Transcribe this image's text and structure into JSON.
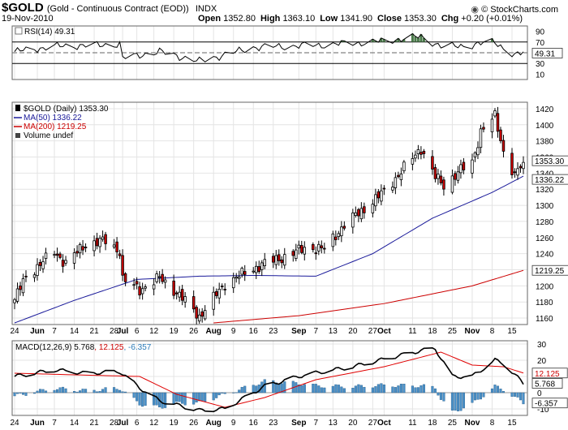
{
  "header": {
    "symbol": "$GOLD",
    "name": "(Gold - Continuous Contract (EOD))",
    "exchange": "INDX",
    "date": "19-Nov-2010",
    "copyright": "© StockCharts.com",
    "ohlc": [
      {
        "label": "Open",
        "value": "1352.80"
      },
      {
        "label": "High",
        "value": "1363.10"
      },
      {
        "label": "Low",
        "value": "1341.90"
      },
      {
        "label": "Close",
        "value": "1353.30"
      },
      {
        "label": "Chg",
        "value": "+0.20 (+0.01%)"
      }
    ]
  },
  "rsi": {
    "legend": "RSI(14) 49.31",
    "value_label": "49.31",
    "ticks": [
      "90",
      "70",
      "50",
      "30",
      "10"
    ]
  },
  "price": {
    "legend": [
      {
        "text": "$GOLD (Daily) 1353.30",
        "color": "#000000"
      },
      {
        "text": "MA(50) 1336.22",
        "color": "#1a1a9a"
      },
      {
        "text": "MA(200) 1219.25",
        "color": "#cc0000"
      },
      {
        "text": "Volume undef",
        "color": "#000000"
      }
    ],
    "ticks": [
      "1420",
      "1400",
      "1380",
      "1360",
      "1340",
      "1320",
      "1300",
      "1280",
      "1260",
      "1240",
      "1220",
      "1200",
      "1180",
      "1160"
    ],
    "flags": {
      "close": "1353.30",
      "ma50": "1336.22",
      "ma200": "1219.25"
    }
  },
  "macd": {
    "legend_prefix": "MACD(12,26,9)",
    "macd_value": "5.768",
    "signal_value": "12.125",
    "hist_value": "-6.357",
    "ticks": [
      "30",
      "20",
      "10",
      "0",
      "-10"
    ],
    "flags": {
      "signal": "12.125",
      "macd": "5.768",
      "hist": "-6.357"
    }
  },
  "x_axis": {
    "labels": [
      {
        "text": "24",
        "bold": false
      },
      {
        "text": "Jun",
        "bold": true
      },
      {
        "text": "7",
        "bold": false
      },
      {
        "text": "14",
        "bold": false
      },
      {
        "text": "21",
        "bold": false
      },
      {
        "text": "28",
        "bold": false
      },
      {
        "text": "Jul",
        "bold": true
      },
      {
        "text": "6",
        "bold": false
      },
      {
        "text": "12",
        "bold": false
      },
      {
        "text": "19",
        "bold": false
      },
      {
        "text": "26",
        "bold": false
      },
      {
        "text": "Aug",
        "bold": true
      },
      {
        "text": "9",
        "bold": false
      },
      {
        "text": "16",
        "bold": false
      },
      {
        "text": "23",
        "bold": false
      },
      {
        "text": "Sep",
        "bold": true
      },
      {
        "text": "7",
        "bold": false
      },
      {
        "text": "13",
        "bold": false
      },
      {
        "text": "20",
        "bold": false
      },
      {
        "text": "27",
        "bold": false
      },
      {
        "text": "Oct",
        "bold": true
      },
      {
        "text": "11",
        "bold": false
      },
      {
        "text": "18",
        "bold": false
      },
      {
        "text": "25",
        "bold": false
      },
      {
        "text": "Nov",
        "bold": true
      },
      {
        "text": "8",
        "bold": false
      },
      {
        "text": "15",
        "bold": false
      }
    ]
  },
  "chart_data": {
    "type": "line",
    "title": "$GOLD (Daily) 1353.30",
    "date_range": [
      "2010-05-24",
      "2010-11-19"
    ],
    "ylim": [
      1150,
      1430
    ],
    "grid": true,
    "price_anchors": [
      {
        "x": "2010-05-24",
        "close": 1183
      },
      {
        "x": "2010-05-28",
        "close": 1212
      },
      {
        "x": "2010-06-07",
        "close": 1242
      },
      {
        "x": "2010-06-11",
        "close": 1228
      },
      {
        "x": "2010-06-18",
        "close": 1252
      },
      {
        "x": "2010-06-25",
        "close": 1256
      },
      {
        "x": "2010-06-30",
        "close": 1243
      },
      {
        "x": "2010-07-01",
        "close": 1208
      },
      {
        "x": "2010-07-07",
        "close": 1195
      },
      {
        "x": "2010-07-14",
        "close": 1210
      },
      {
        "x": "2010-07-20",
        "close": 1192
      },
      {
        "x": "2010-07-28",
        "close": 1162
      },
      {
        "x": "2010-08-06",
        "close": 1203
      },
      {
        "x": "2010-08-13",
        "close": 1216
      },
      {
        "x": "2010-08-20",
        "close": 1228
      },
      {
        "x": "2010-08-27",
        "close": 1236
      },
      {
        "x": "2010-09-03",
        "close": 1247
      },
      {
        "x": "2010-09-10",
        "close": 1246
      },
      {
        "x": "2010-09-17",
        "close": 1276
      },
      {
        "x": "2010-09-24",
        "close": 1296
      },
      {
        "x": "2010-10-01",
        "close": 1317
      },
      {
        "x": "2010-10-08",
        "close": 1346
      },
      {
        "x": "2010-10-14",
        "close": 1371
      },
      {
        "x": "2010-10-19",
        "close": 1335
      },
      {
        "x": "2010-10-22",
        "close": 1325
      },
      {
        "x": "2010-10-28",
        "close": 1344
      },
      {
        "x": "2010-11-01",
        "close": 1353
      },
      {
        "x": "2010-11-04",
        "close": 1392
      },
      {
        "x": "2010-11-09",
        "close": 1410
      },
      {
        "x": "2010-11-12",
        "close": 1367
      },
      {
        "x": "2010-11-16",
        "close": 1337
      },
      {
        "x": "2010-11-19",
        "close": 1353.3
      }
    ],
    "series": [
      {
        "name": "MA(50)",
        "color": "#1a1a9a",
        "points": [
          [
            "2010-05-24",
            1154
          ],
          [
            "2010-06-14",
            1182
          ],
          [
            "2010-07-06",
            1208
          ],
          [
            "2010-07-28",
            1212
          ],
          [
            "2010-08-16",
            1213
          ],
          [
            "2010-09-07",
            1212
          ],
          [
            "2010-09-27",
            1240
          ],
          [
            "2010-10-18",
            1284
          ],
          [
            "2010-11-08",
            1316
          ],
          [
            "2010-11-19",
            1336.22
          ]
        ]
      },
      {
        "name": "MA(200)",
        "color": "#cc0000",
        "points": [
          [
            "2010-08-02",
            1154
          ],
          [
            "2010-09-01",
            1163
          ],
          [
            "2010-10-01",
            1178
          ],
          [
            "2010-11-01",
            1200
          ],
          [
            "2010-11-19",
            1219.25
          ]
        ]
      }
    ],
    "rsi": {
      "ylim": [
        0,
        100
      ],
      "last": 49.31,
      "points": [
        [
          "2010-05-24",
          52
        ],
        [
          "2010-06-07",
          62
        ],
        [
          "2010-06-21",
          64
        ],
        [
          "2010-06-30",
          66
        ],
        [
          "2010-07-01",
          40
        ],
        [
          "2010-07-14",
          52
        ],
        [
          "2010-07-28",
          34
        ],
        [
          "2010-08-16",
          60
        ],
        [
          "2010-09-07",
          64
        ],
        [
          "2010-09-27",
          70
        ],
        [
          "2010-10-14",
          80
        ],
        [
          "2010-10-22",
          60
        ],
        [
          "2010-11-01",
          65
        ],
        [
          "2010-11-09",
          70
        ],
        [
          "2010-11-16",
          45
        ],
        [
          "2010-11-19",
          49.31
        ]
      ]
    },
    "macd_panel": {
      "ylim": [
        -14,
        32
      ],
      "macd_last": 5.768,
      "signal_last": 12.125,
      "hist_last": -6.357,
      "macd": [
        [
          "2010-05-24",
          10
        ],
        [
          "2010-06-07",
          14
        ],
        [
          "2010-06-18",
          12
        ],
        [
          "2010-06-30",
          13
        ],
        [
          "2010-07-07",
          3
        ],
        [
          "2010-07-14",
          -5
        ],
        [
          "2010-07-28",
          -11
        ],
        [
          "2010-08-06",
          -10
        ],
        [
          "2010-08-20",
          4
        ],
        [
          "2010-09-03",
          11
        ],
        [
          "2010-09-20",
          16
        ],
        [
          "2010-10-14",
          26
        ],
        [
          "2010-10-19",
          27
        ],
        [
          "2010-10-25",
          10
        ],
        [
          "2010-11-01",
          10
        ],
        [
          "2010-11-09",
          20
        ],
        [
          "2010-11-12",
          18
        ],
        [
          "2010-11-19",
          5.768
        ]
      ],
      "signal": [
        [
          "2010-05-24",
          12
        ],
        [
          "2010-06-14",
          11
        ],
        [
          "2010-07-07",
          10
        ],
        [
          "2010-07-20",
          -1
        ],
        [
          "2010-08-06",
          -9
        ],
        [
          "2010-08-20",
          -3
        ],
        [
          "2010-09-07",
          8
        ],
        [
          "2010-10-01",
          16
        ],
        [
          "2010-10-21",
          25
        ],
        [
          "2010-11-01",
          17
        ],
        [
          "2010-11-12",
          16
        ],
        [
          "2010-11-19",
          12.125
        ]
      ]
    }
  }
}
